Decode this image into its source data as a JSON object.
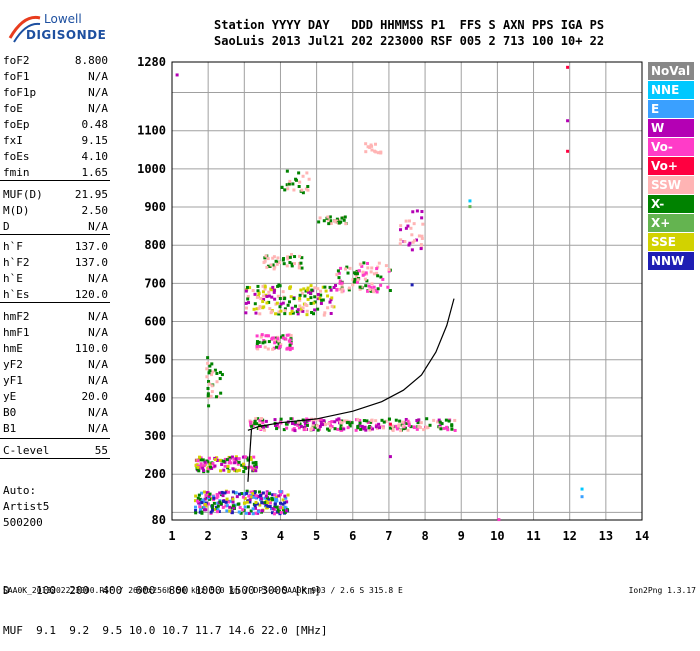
{
  "logo": {
    "line1": "Lowell",
    "line2": "DIGISONDE"
  },
  "header": {
    "row1": "Station YYYY DAY   DDD HHMMSS P1  FFS S AXN PPS IGA PS",
    "row2": "SaoLuis 2013 Jul21 202 223000 RSF 005 2 713 100 10+ 22"
  },
  "params": [
    {
      "key": "foF2",
      "val": "8.800"
    },
    {
      "key": "foF1",
      "val": "N/A"
    },
    {
      "key": "foF1p",
      "val": "N/A"
    },
    {
      "key": "foE",
      "val": "N/A"
    },
    {
      "key": "foEp",
      "val": "0.48"
    },
    {
      "key": "fxI",
      "val": "9.15"
    },
    {
      "key": "foEs",
      "val": "4.10"
    },
    {
      "key": "fmin",
      "val": "1.65"
    },
    {
      "key": "MUF(D)",
      "val": "21.95"
    },
    {
      "key": "M(D)",
      "val": "2.50"
    },
    {
      "key": "D",
      "val": "N/A"
    },
    {
      "key": "h`F",
      "val": "137.0"
    },
    {
      "key": "h`F2",
      "val": "137.0"
    },
    {
      "key": "h`E",
      "val": "N/A"
    },
    {
      "key": "h`Es",
      "val": "120.0"
    },
    {
      "key": "hmF2",
      "val": "N/A"
    },
    {
      "key": "hmF1",
      "val": "N/A"
    },
    {
      "key": "hmE",
      "val": "110.0"
    },
    {
      "key": "yF2",
      "val": "N/A"
    },
    {
      "key": "yF1",
      "val": "N/A"
    },
    {
      "key": "yE",
      "val": "20.0"
    },
    {
      "key": "B0",
      "val": "N/A"
    },
    {
      "key": "B1",
      "val": "N/A"
    },
    {
      "key": "C-level",
      "val": "55"
    }
  ],
  "auto": {
    "l1": "Auto:",
    "l2": "Artist5",
    "l3": "500200"
  },
  "legend": [
    {
      "label": "NoVal",
      "color": "#888888"
    },
    {
      "label": "NNE",
      "color": "#00c8ff"
    },
    {
      "label": "E",
      "color": "#3aa0ff"
    },
    {
      "label": "W",
      "color": "#b400b4"
    },
    {
      "label": "Vo-",
      "color": "#ff3cc8"
    },
    {
      "label": "Vo+",
      "color": "#ff0040"
    },
    {
      "label": "SSW",
      "color": "#ffb4b4"
    },
    {
      "label": "X-",
      "color": "#008200"
    },
    {
      "label": "X+",
      "color": "#64b450"
    },
    {
      "label": "SSE",
      "color": "#d2d200"
    },
    {
      "label": "NNW",
      "color": "#1e1eb4"
    }
  ],
  "dmuf": {
    "d_row": "D    100  200  400  600  800 1000 1500 3000 [km]",
    "muf_row": "MUF  9.1  9.2  9.5 10.0 10.7 11.7 14.6 22.0 [MHz]"
  },
  "footer": "SAA0K_2013202223000.RSF / 260fx256h 50 kHz 5.0 km / DPS-4 SAA0K 903 / 2.6 S 315.8 E",
  "version": "Ion2Png 1.3.17",
  "chart_data": {
    "type": "scatter",
    "title": "",
    "xlabel": "",
    "ylabel": "",
    "xlim": [
      1,
      14
    ],
    "ylim": [
      80,
      1280
    ],
    "x_ticks": [
      1,
      2,
      3,
      4,
      5,
      6,
      7,
      8,
      9,
      10,
      11,
      12,
      13,
      14
    ],
    "y_ticks": [
      80,
      200,
      300,
      400,
      500,
      600,
      700,
      800,
      900,
      1000,
      1100,
      1280
    ],
    "y_grid": [
      80,
      100,
      200,
      300,
      400,
      500,
      600,
      700,
      800,
      900,
      1000,
      1100,
      1200,
      1280
    ],
    "grid": true,
    "trace": {
      "name": "",
      "x": [
        3.1,
        3.4,
        4.0,
        5.0,
        6.0,
        6.8,
        7.4,
        7.9,
        8.3,
        8.6,
        8.8
      ],
      "y": [
        315,
        325,
        335,
        345,
        365,
        390,
        420,
        460,
        520,
        590,
        660
      ]
    },
    "base_x": [
      3.2,
      3.1
    ],
    "base_y": [
      320,
      180
    ],
    "echo_clusters": [
      {
        "x0": 1.6,
        "x1": 4.2,
        "y0": 100,
        "y1": 160,
        "n": 260,
        "colors": [
          "#008200",
          "#ff3cc8",
          "#3aa0ff",
          "#d2d200",
          "#b400b4",
          "#1e1eb4"
        ]
      },
      {
        "x0": 1.6,
        "x1": 3.3,
        "y0": 210,
        "y1": 250,
        "n": 120,
        "colors": [
          "#ff3cc8",
          "#008200",
          "#b400b4",
          "#d2d200"
        ]
      },
      {
        "x0": 3.1,
        "x1": 8.8,
        "y0": 318,
        "y1": 350,
        "n": 260,
        "colors": [
          "#008200",
          "#ff3cc8",
          "#b400b4",
          "#ffb4b4"
        ]
      },
      {
        "x0": 3.0,
        "x1": 5.5,
        "y0": 620,
        "y1": 700,
        "n": 160,
        "colors": [
          "#008200",
          "#ffb4b4",
          "#b400b4",
          "#d2d200"
        ]
      },
      {
        "x0": 5.5,
        "x1": 7.0,
        "y0": 680,
        "y1": 760,
        "n": 90,
        "colors": [
          "#ffb4b4",
          "#ff3cc8",
          "#008200"
        ]
      },
      {
        "x0": 3.3,
        "x1": 4.3,
        "y0": 530,
        "y1": 570,
        "n": 60,
        "colors": [
          "#ff3cc8",
          "#ffb4b4",
          "#008200"
        ]
      },
      {
        "x0": 3.5,
        "x1": 4.6,
        "y0": 740,
        "y1": 780,
        "n": 40,
        "colors": [
          "#008200",
          "#ffb4b4"
        ]
      },
      {
        "x0": 5.0,
        "x1": 5.8,
        "y0": 860,
        "y1": 880,
        "n": 30,
        "colors": [
          "#008200",
          "#ffb4b4"
        ]
      },
      {
        "x0": 4.0,
        "x1": 4.8,
        "y0": 940,
        "y1": 1000,
        "n": 25,
        "colors": [
          "#ffb4b4",
          "#008200"
        ]
      },
      {
        "x0": 6.3,
        "x1": 6.8,
        "y0": 1040,
        "y1": 1070,
        "n": 14,
        "colors": [
          "#ffb4b4"
        ]
      },
      {
        "x0": 7.2,
        "x1": 7.9,
        "y0": 790,
        "y1": 900,
        "n": 30,
        "colors": [
          "#ffb4b4",
          "#b400b4"
        ]
      },
      {
        "x0": 1.9,
        "x1": 2.4,
        "y0": 380,
        "y1": 520,
        "n": 30,
        "colors": [
          "#ffb4b4",
          "#008200"
        ]
      }
    ],
    "isolated_points": [
      {
        "x": 1.1,
        "y": 1250,
        "color": "#b400b4"
      },
      {
        "x": 11.9,
        "y": 1270,
        "color": "#ff0040"
      },
      {
        "x": 11.9,
        "y": 1130,
        "color": "#b400b4"
      },
      {
        "x": 11.9,
        "y": 1050,
        "color": "#ff0040"
      },
      {
        "x": 9.2,
        "y": 920,
        "color": "#00c8ff"
      },
      {
        "x": 9.2,
        "y": 905,
        "color": "#64b450"
      },
      {
        "x": 12.3,
        "y": 165,
        "color": "#00c8ff"
      },
      {
        "x": 12.3,
        "y": 145,
        "color": "#3aa0ff"
      },
      {
        "x": 10.0,
        "y": 85,
        "color": "#ff3cc8"
      },
      {
        "x": 7.0,
        "y": 335,
        "color": "#ff0040"
      },
      {
        "x": 7.0,
        "y": 250,
        "color": "#b400b4"
      },
      {
        "x": 7.6,
        "y": 700,
        "color": "#1e1eb4"
      }
    ]
  }
}
